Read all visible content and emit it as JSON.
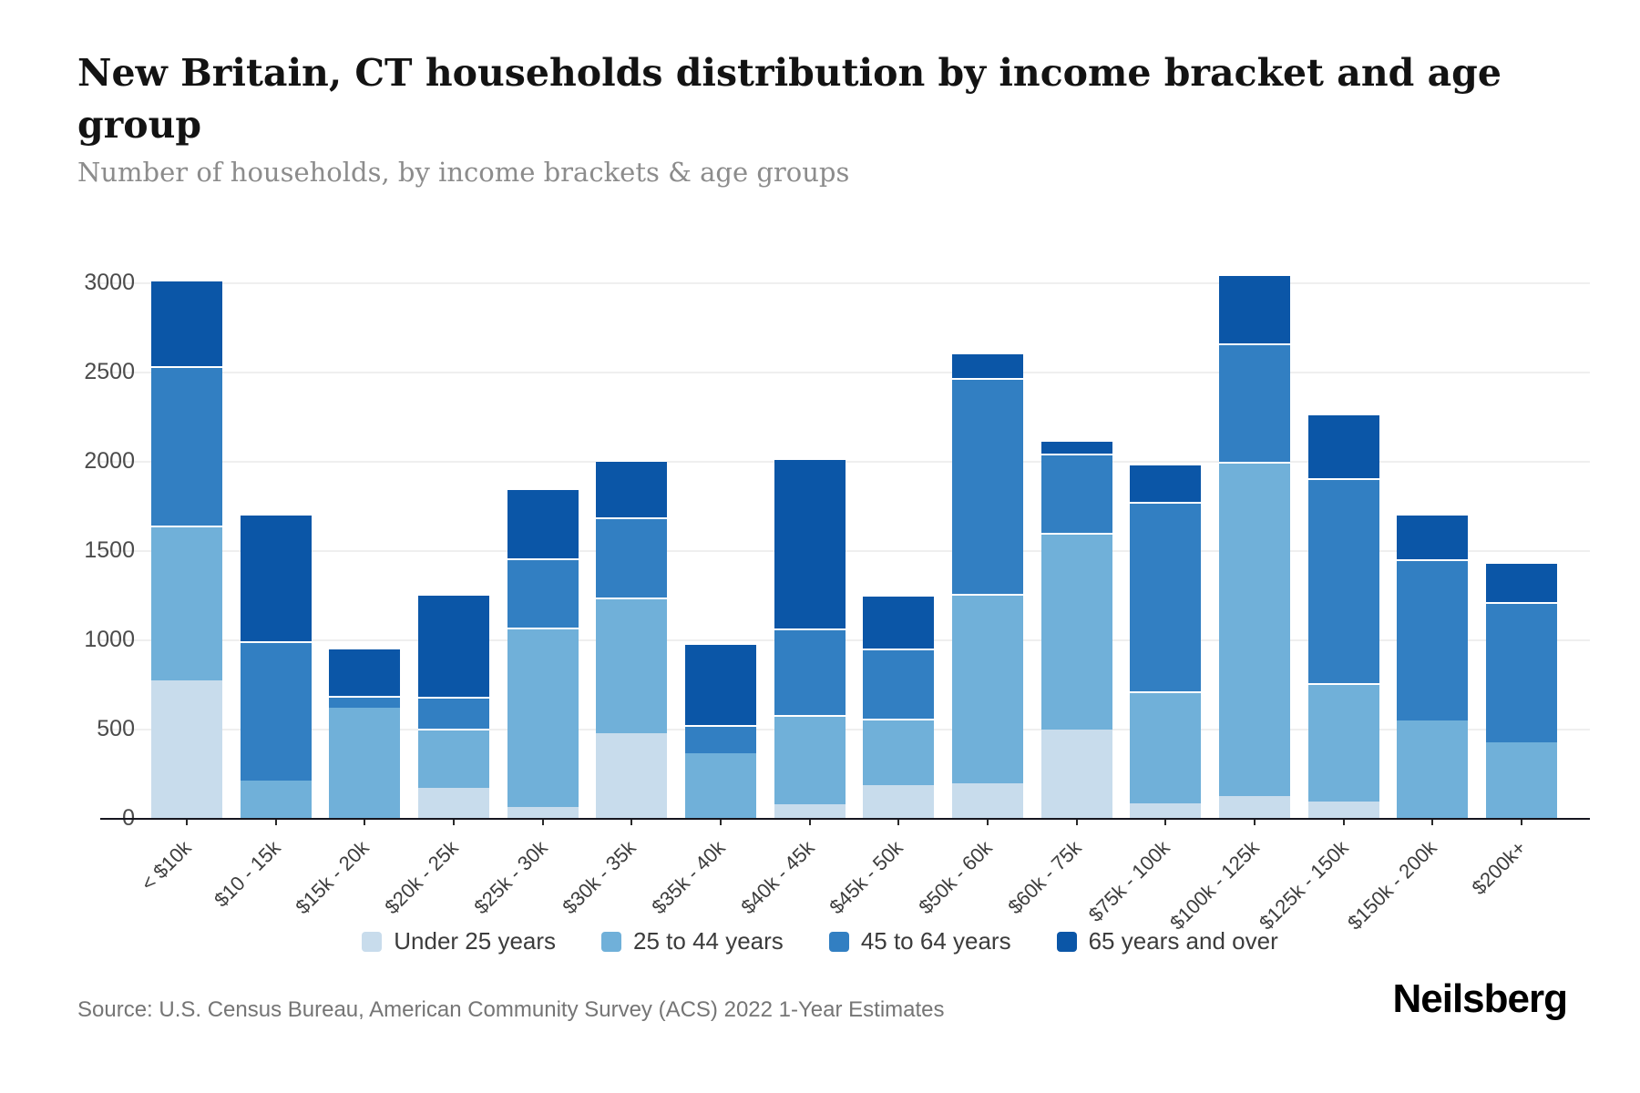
{
  "title": "New Britain, CT households distribution by income bracket and age group",
  "subtitle": "Number of households, by income brackets & age groups",
  "source": "Source: U.S. Census Bureau, American Community Survey (ACS) 2022 1-Year Estimates",
  "logo": "Neilsberg",
  "colors": {
    "under_25": "#c8dcec",
    "age_25_44": "#70b0d9",
    "age_45_64": "#327fc2",
    "age_65_plus": "#0b56a7",
    "grid": "#efefef",
    "axis": "#16161f",
    "y_label": "#4b4b4b",
    "x_label": "#3d3d3d",
    "background": "#ffffff"
  },
  "chart_data": {
    "type": "bar",
    "stacked": true,
    "title": "New Britain, CT households distribution by income bracket and age group",
    "xlabel": "",
    "ylabel": "Number of households",
    "ylim": [
      0,
      3060
    ],
    "y_ticks": [
      0,
      500,
      1000,
      1500,
      2000,
      2500,
      3000
    ],
    "grid": true,
    "legend_position": "bottom",
    "categories": [
      "< $10k",
      "$10 - 15k",
      "$15k - 20k",
      "$20k - 25k",
      "$25k - 30k",
      "$30k - 35k",
      "$35k - 40k",
      "$40k - 45k",
      "$45k - 50k",
      "$50k - 60k",
      "$60k - 75k",
      "$75k - 100k",
      "$100k - 125k",
      "$125k - 150k",
      "$150k - 200k",
      "$200k+"
    ],
    "series": [
      {
        "name": "Under 25 years",
        "color": "#c8dcec",
        "values": [
          775,
          0,
          0,
          175,
          65,
          480,
          0,
          80,
          190,
          200,
          500,
          85,
          130,
          95,
          0,
          0
        ]
      },
      {
        "name": "25 to 44 years",
        "color": "#70b0d9",
        "values": [
          870,
          215,
          620,
          330,
          1005,
          760,
          365,
          500,
          370,
          1060,
          1100,
          630,
          1870,
          665,
          550,
          430
        ]
      },
      {
        "name": "45 to 64 years",
        "color": "#327fc2",
        "values": [
          890,
          780,
          70,
          180,
          390,
          450,
          160,
          485,
          395,
          1210,
          445,
          1060,
          665,
          1150,
          905,
          785
        ]
      },
      {
        "name": "65 years and over",
        "color": "#0b56a7",
        "values": [
          485,
          715,
          270,
          575,
          390,
          320,
          460,
          955,
          300,
          140,
          75,
          215,
          385,
          360,
          255,
          225
        ]
      }
    ],
    "totals": [
      3020,
      1710,
      960,
      1260,
      1850,
      2010,
      985,
      2020,
      1255,
      2610,
      2120,
      1990,
      3050,
      2270,
      1710,
      1440
    ]
  }
}
